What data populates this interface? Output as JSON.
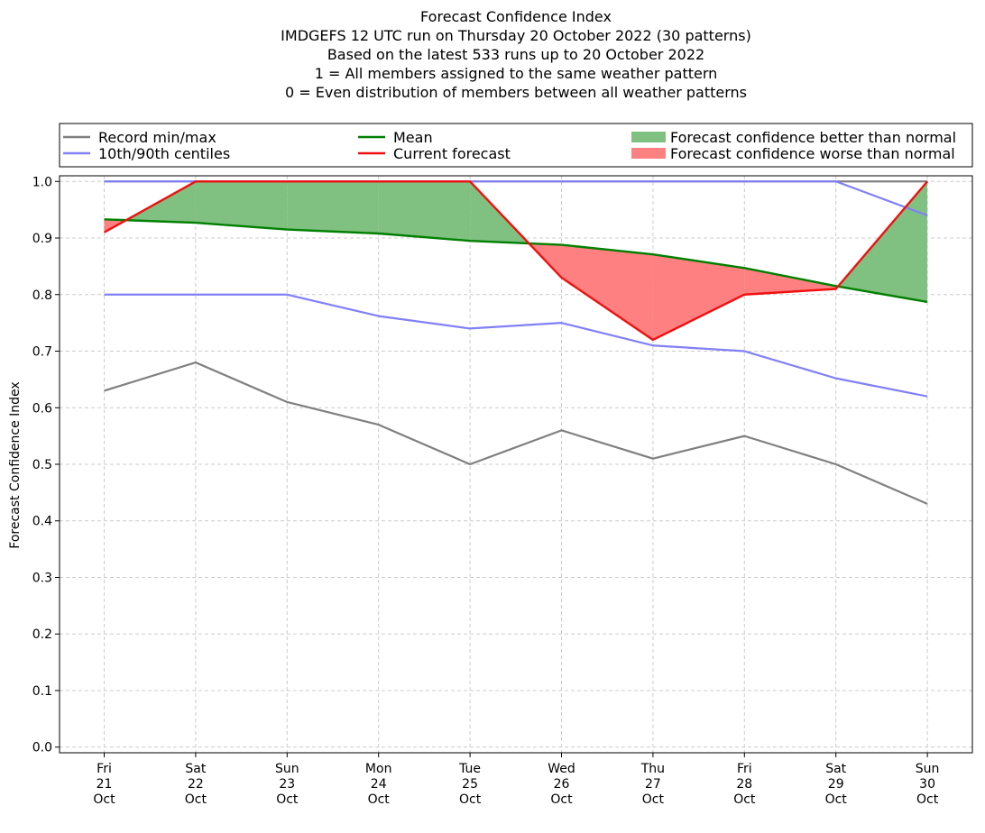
{
  "chart_data": {
    "type": "line",
    "title_lines": [
      "Forecast Confidence Index",
      "IMDGEFS 12 UTC run on Thursday 20 October 2022 (30 patterns)",
      "Based on the latest 533 runs up to 20 October 2022",
      "1 = All members assigned to the same weather pattern",
      "0 = Even distribution of members between all weather patterns"
    ],
    "ylabel": "Forecast Confidence Index",
    "xlabel": "",
    "ylim": [
      -0.01,
      1.01
    ],
    "yticks": [
      "0.0",
      "0.1",
      "0.2",
      "0.3",
      "0.4",
      "0.5",
      "0.6",
      "0.7",
      "0.8",
      "0.9",
      "1.0"
    ],
    "ytick_values": [
      0.0,
      0.1,
      0.2,
      0.3,
      0.4,
      0.5,
      0.6,
      0.7,
      0.8,
      0.9,
      1.0
    ],
    "categories": [
      [
        "Fri",
        "21",
        "Oct"
      ],
      [
        "Sat",
        "22",
        "Oct"
      ],
      [
        "Sun",
        "23",
        "Oct"
      ],
      [
        "Mon",
        "24",
        "Oct"
      ],
      [
        "Tue",
        "25",
        "Oct"
      ],
      [
        "Wed",
        "26",
        "Oct"
      ],
      [
        "Thu",
        "27",
        "Oct"
      ],
      [
        "Fri",
        "28",
        "Oct"
      ],
      [
        "Sat",
        "29",
        "Oct"
      ],
      [
        "Sun",
        "30",
        "Oct"
      ]
    ],
    "grid": true,
    "legend_position": "top",
    "series": {
      "record_min": [
        0.63,
        0.68,
        0.61,
        0.57,
        0.5,
        0.56,
        0.51,
        0.55,
        0.5,
        0.43
      ],
      "record_max": [
        1.0,
        1.0,
        1.0,
        1.0,
        1.0,
        1.0,
        1.0,
        1.0,
        1.0,
        1.0
      ],
      "centile_10": [
        0.8,
        0.8,
        0.8,
        0.762,
        0.74,
        0.75,
        0.71,
        0.7,
        0.652,
        0.62
      ],
      "centile_90": [
        1.0,
        1.0,
        1.0,
        1.0,
        1.0,
        1.0,
        1.0,
        1.0,
        1.0,
        0.94
      ],
      "mean": [
        0.933,
        0.927,
        0.915,
        0.908,
        0.895,
        0.888,
        0.871,
        0.847,
        0.815,
        0.787
      ],
      "current": [
        0.91,
        1.0,
        1.0,
        1.0,
        1.0,
        0.83,
        0.72,
        0.8,
        0.81,
        1.0
      ]
    },
    "legend": [
      {
        "label": "Record min/max",
        "kind": "line",
        "color": "#808080"
      },
      {
        "label": "Mean",
        "kind": "line",
        "color": "#008000"
      },
      {
        "label": "Forecast confidence better than normal",
        "kind": "patch",
        "color": "#80c080"
      },
      {
        "label": "10th/90th centiles",
        "kind": "line",
        "color": "#8080f8"
      },
      {
        "label": "Current forecast",
        "kind": "line",
        "color": "#f01010"
      },
      {
        "label": "Forecast confidence worse than normal",
        "kind": "patch",
        "color": "#ff8080"
      }
    ],
    "colors": {
      "record": "#808080",
      "centile": "#8080f8",
      "mean": "#008000",
      "current": "#f01010",
      "better": "#80c080",
      "worse": "#ff8080"
    }
  }
}
